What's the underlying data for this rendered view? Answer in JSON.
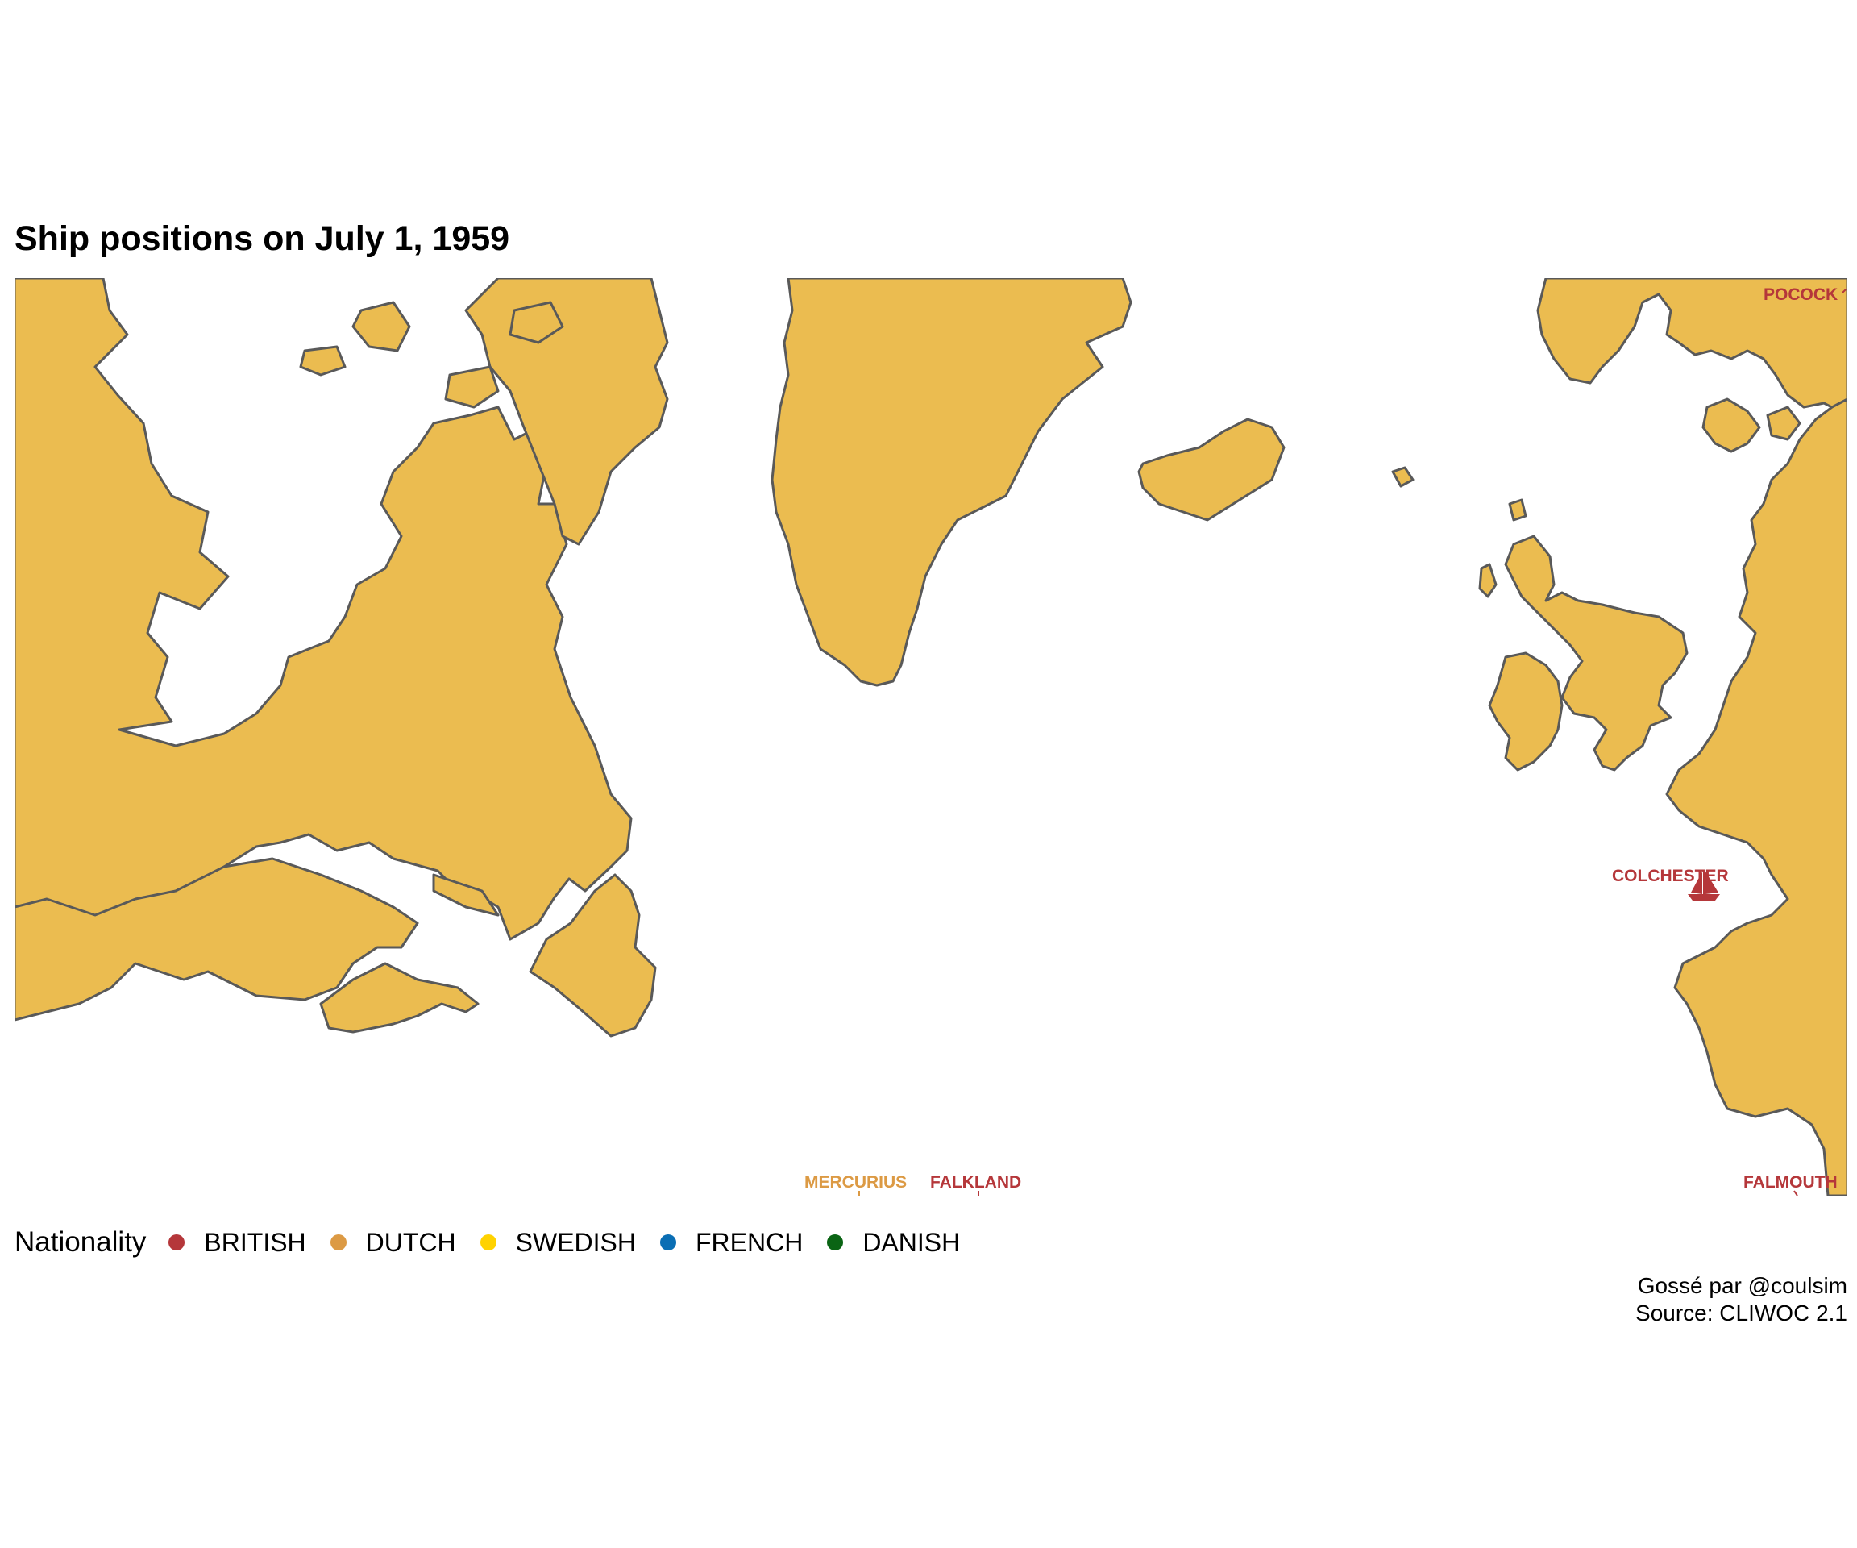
{
  "title": "Ship positions on July 1, 1959",
  "map": {
    "land_color": "#EBBC50",
    "coast_color": "#595959",
    "ocean_color": "#FFFFFF"
  },
  "ships": [
    {
      "name": "POCOCK",
      "nationality": "BRITISH",
      "color": "#B5373A"
    },
    {
      "name": "COLCHESTER",
      "nationality": "BRITISH",
      "color": "#B5373A"
    },
    {
      "name": "MERCURIUS",
      "nationality": "DUTCH",
      "color": "#DC9A44"
    },
    {
      "name": "FALKLAND",
      "nationality": "BRITISH",
      "color": "#B5373A"
    },
    {
      "name": "FALMOUTH",
      "nationality": "BRITISH",
      "color": "#B5373A"
    }
  ],
  "legend": {
    "title": "Nationality",
    "items": [
      {
        "label": "BRITISH",
        "color": "#B5373A"
      },
      {
        "label": "DUTCH",
        "color": "#DC9A44"
      },
      {
        "label": "SWEDISH",
        "color": "#FFD200"
      },
      {
        "label": "FRENCH",
        "color": "#0A6EB4"
      },
      {
        "label": "DANISH",
        "color": "#0A6414"
      }
    ]
  },
  "caption": {
    "line1": "Gossé par @coulsim",
    "line2": "Source: CLIWOC 2.1"
  }
}
